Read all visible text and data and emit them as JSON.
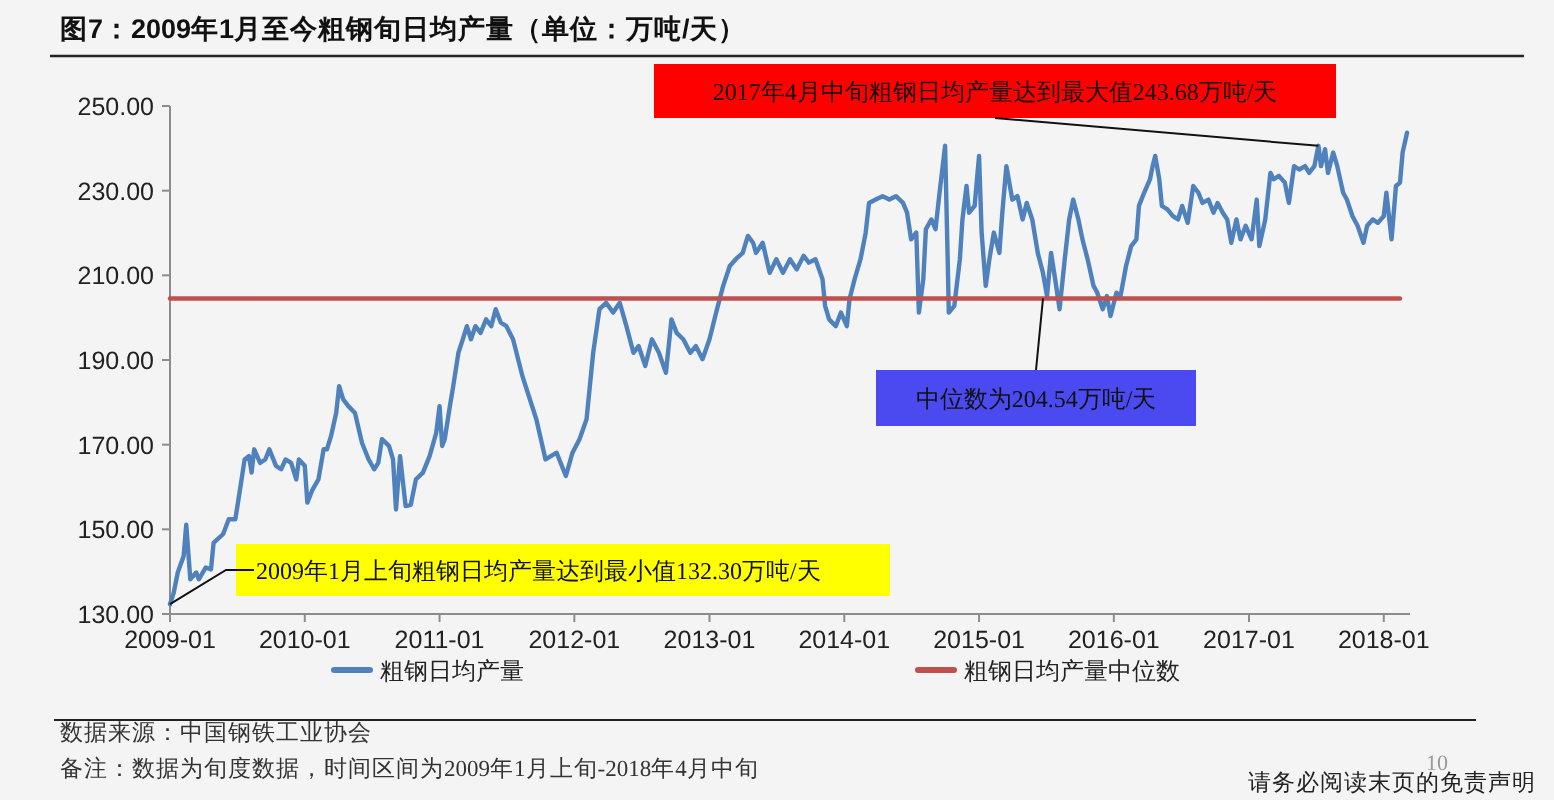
{
  "chart_data": {
    "type": "line",
    "title": "图7：2009年1月至今粗钢旬日均产量（单位：万吨/天）",
    "xlim": [
      "2009-01-01",
      "2018-03-13"
    ],
    "xticks": [
      "2009-01",
      "2010-01",
      "2011-01",
      "2012-01",
      "2013-01",
      "2014-01",
      "2015-01",
      "2016-01",
      "2017-01",
      "2018-01"
    ],
    "ylim": [
      130,
      250
    ],
    "yticks": [
      {
        "value": 130,
        "label": "130.00"
      },
      {
        "value": 150,
        "label": "150.00"
      },
      {
        "value": 170,
        "label": "170.00"
      },
      {
        "value": 190,
        "label": "190.00"
      },
      {
        "value": 210,
        "label": "210.00"
      },
      {
        "value": 230,
        "label": "230.00"
      },
      {
        "value": 250,
        "label": "250.00"
      }
    ],
    "legend": "bottom",
    "series": [
      {
        "name": "粗钢日均产量",
        "color": "#4f81bd",
        "x": [
          "2009-01-01",
          "2009-01-11",
          "2009-01-22",
          "2009-02-07",
          "2009-02-14",
          "2009-02-25",
          "2009-03-13",
          "2009-03-20",
          "2009-04-08",
          "2009-04-22",
          "2009-04-29",
          "2009-05-25",
          "2009-06-09",
          "2009-06-27",
          "2009-07-11",
          "2009-07-22",
          "2009-08-03",
          "2009-08-10",
          "2009-08-17",
          "2009-09-02",
          "2009-09-16",
          "2009-09-27",
          "2009-10-15",
          "2009-10-29",
          "2009-11-10",
          "2009-11-25",
          "2009-12-09",
          "2009-12-16",
          "2010-01-01",
          "2010-01-08",
          "2010-01-22",
          "2010-02-07",
          "2010-02-21",
          "2010-03-02",
          "2010-03-13",
          "2010-03-27",
          "2010-04-04",
          "2010-04-15",
          "2010-04-29",
          "2010-05-17",
          "2010-06-05",
          "2010-06-23",
          "2010-07-08",
          "2010-07-19",
          "2010-07-29",
          "2010-08-17",
          "2010-08-28",
          "2010-09-05",
          "2010-09-16",
          "2010-09-23",
          "2010-10-01",
          "2010-10-15",
          "2010-10-29",
          "2010-11-17",
          "2010-12-05",
          "2010-12-23",
          "2011-01-01",
          "2011-01-08",
          "2011-01-15",
          "2011-01-29",
          "2011-02-07",
          "2011-02-21",
          "2011-03-05",
          "2011-03-16",
          "2011-03-27",
          "2011-04-08",
          "2011-04-22",
          "2011-05-07",
          "2011-05-21",
          "2011-06-02",
          "2011-06-16",
          "2011-07-01",
          "2011-07-19",
          "2011-08-14",
          "2011-09-20",
          "2011-10-15",
          "2011-11-14",
          "2011-12-09",
          "2011-12-27",
          "2012-01-15",
          "2012-02-03",
          "2012-02-21",
          "2012-03-09",
          "2012-03-27",
          "2012-04-15",
          "2012-05-03",
          "2012-05-21",
          "2012-06-09",
          "2012-06-23",
          "2012-07-11",
          "2012-07-29",
          "2012-08-17",
          "2012-09-05",
          "2012-09-20",
          "2012-10-04",
          "2012-10-22",
          "2012-11-10",
          "2012-11-25",
          "2012-12-13",
          "2013-01-01",
          "2013-01-19",
          "2013-02-07",
          "2013-02-25",
          "2013-03-13",
          "2013-04-01",
          "2013-04-15",
          "2013-04-29",
          "2013-05-07",
          "2013-05-25",
          "2013-06-13",
          "2013-07-01",
          "2013-07-19",
          "2013-08-07",
          "2013-08-25",
          "2013-09-13",
          "2013-09-27",
          "2013-10-15",
          "2013-11-03",
          "2013-11-10",
          "2013-11-21",
          "2013-12-09",
          "2013-12-23",
          "2014-01-08",
          "2014-01-15",
          "2014-01-29",
          "2014-02-14",
          "2014-02-28",
          "2014-03-09",
          "2014-03-27",
          "2014-04-15",
          "2014-05-03",
          "2014-05-21",
          "2014-06-09",
          "2014-06-20",
          "2014-07-01",
          "2014-07-15",
          "2014-07-22",
          "2014-08-03",
          "2014-08-10",
          "2014-08-25",
          "2014-09-05",
          "2014-09-16",
          "2014-10-01",
          "2014-10-08",
          "2014-10-11",
          "2014-10-26",
          "2014-11-10",
          "2014-11-17",
          "2014-11-28",
          "2014-12-05",
          "2014-12-20",
          "2015-01-01",
          "2015-01-08",
          "2015-01-19",
          "2015-01-29",
          "2015-02-10",
          "2015-02-25",
          "2015-03-05",
          "2015-03-16",
          "2015-04-01",
          "2015-04-15",
          "2015-04-29",
          "2015-05-10",
          "2015-05-25",
          "2015-06-09",
          "2015-06-23",
          "2015-07-04",
          "2015-07-15",
          "2015-07-26",
          "2015-08-07",
          "2015-08-21",
          "2015-09-02",
          "2015-09-13",
          "2015-09-27",
          "2015-10-08",
          "2015-10-22",
          "2015-11-07",
          "2015-11-17",
          "2015-12-02",
          "2015-12-13",
          "2015-12-23",
          "2016-01-08",
          "2016-01-19",
          "2016-02-03",
          "2016-02-17",
          "2016-03-02",
          "2016-03-09",
          "2016-03-23",
          "2016-04-08",
          "2016-04-15",
          "2016-04-22",
          "2016-05-03",
          "2016-05-10",
          "2016-05-25",
          "2016-06-09",
          "2016-06-23",
          "2016-07-04",
          "2016-07-19",
          "2016-08-03",
          "2016-08-17",
          "2016-08-28",
          "2016-09-13",
          "2016-09-27",
          "2016-10-08",
          "2016-10-22",
          "2016-11-03",
          "2016-11-14",
          "2016-11-28",
          "2016-12-09",
          "2016-12-23",
          "2017-01-08",
          "2017-01-22",
          "2017-01-29",
          "2017-02-14",
          "2017-02-28",
          "2017-03-09",
          "2017-03-23",
          "2017-04-08",
          "2017-04-19",
          "2017-05-03",
          "2017-05-17",
          "2017-06-02",
          "2017-06-13",
          "2017-06-27",
          "2017-07-08",
          "2017-07-15",
          "2017-07-26",
          "2017-08-03",
          "2017-08-17",
          "2017-08-28",
          "2017-09-13",
          "2017-09-23",
          "2017-10-08",
          "2017-10-22",
          "2017-11-07",
          "2017-11-17",
          "2017-12-02",
          "2017-12-16",
          "2018-01-01",
          "2018-01-08",
          "2018-01-22",
          "2018-02-03",
          "2018-02-14",
          "2018-02-21",
          "2018-03-05"
        ],
        "values": [
          132.3,
          135.0,
          139.8,
          143.7,
          151.1,
          138.2,
          139.8,
          138.2,
          141.0,
          140.5,
          146.8,
          148.9,
          152.4,
          152.4,
          160.2,
          166.5,
          167.3,
          163.4,
          168.9,
          165.7,
          166.5,
          168.9,
          165.0,
          164.2,
          166.5,
          165.7,
          161.8,
          166.5,
          165.0,
          156.3,
          159.4,
          161.8,
          168.9,
          168.9,
          172.0,
          177.5,
          183.8,
          180.7,
          179.1,
          177.5,
          170.4,
          166.5,
          164.2,
          165.7,
          171.3,
          169.7,
          166.5,
          154.7,
          167.3,
          161.8,
          155.5,
          155.8,
          161.8,
          163.4,
          167.3,
          172.8,
          179.1,
          169.7,
          171.3,
          179.1,
          183.8,
          191.7,
          194.9,
          198.0,
          194.9,
          198.0,
          196.4,
          199.6,
          198.0,
          202.0,
          198.8,
          198.0,
          194.9,
          186.0,
          176.0,
          166.5,
          168.1,
          162.6,
          168.1,
          171.3,
          176.0,
          191.7,
          202.0,
          203.5,
          201.2,
          203.5,
          198.0,
          191.7,
          193.3,
          188.6,
          194.9,
          191.7,
          187.0,
          199.6,
          196.4,
          194.9,
          191.7,
          193.3,
          190.2,
          194.9,
          201.2,
          207.5,
          212.2,
          213.8,
          215.3,
          219.3,
          217.7,
          215.3,
          217.7,
          210.6,
          213.8,
          210.6,
          213.8,
          211.4,
          214.6,
          213.0,
          213.8,
          209.1,
          202.8,
          199.6,
          198.0,
          201.2,
          198.0,
          204.3,
          209.1,
          213.8,
          220.1,
          227.1,
          227.9,
          228.7,
          227.9,
          228.7,
          227.1,
          224.8,
          218.5,
          220.1,
          201.2,
          209.1,
          220.9,
          223.2,
          220.9,
          229.5,
          240.6,
          213.8,
          201.2,
          202.8,
          213.8,
          223.2,
          231.1,
          224.8,
          226.4,
          238.2,
          220.1,
          207.5,
          213.8,
          220.1,
          215.3,
          224.8,
          235.8,
          227.9,
          228.7,
          223.2,
          227.1,
          223.2,
          215.3,
          210.6,
          205.1,
          215.3,
          209.1,
          202.0,
          213.8,
          223.2,
          227.9,
          223.2,
          218.5,
          213.8,
          207.5,
          205.9,
          202.0,
          205.1,
          200.4,
          205.9,
          205.1,
          212.2,
          216.9,
          218.5,
          226.4,
          229.5,
          232.7,
          235.8,
          238.2,
          232.7,
          226.4,
          225.6,
          224.0,
          223.2,
          226.4,
          222.4,
          231.1,
          229.5,
          227.1,
          227.9,
          224.8,
          227.1,
          224.8,
          223.2,
          217.7,
          223.2,
          218.5,
          221.7,
          218.5,
          227.9,
          216.9,
          223.2,
          234.2,
          232.7,
          233.5,
          231.9,
          227.1,
          235.8,
          235.0,
          235.8,
          234.2,
          235.8,
          240.6,
          235.8,
          239.8,
          234.2,
          239.0,
          235.8,
          229.5,
          227.9,
          224.0,
          221.7,
          217.7,
          221.7,
          223.2,
          222.4,
          224.0,
          229.5,
          218.5,
          231.1,
          231.9,
          239.0,
          243.7
        ]
      },
      {
        "name": "粗钢日均产量中位数",
        "color": "#c0504d",
        "x": [
          "2009-01-01",
          "2018-02-14"
        ],
        "values": [
          204.54,
          204.54
        ]
      }
    ],
    "annotations": [
      {
        "text": "2017年4月中旬粗钢日均产量达到最大值243.68万吨/天",
        "x": "2017-07-08",
        "y": 240.6
      },
      {
        "text": "2009年1月上旬粗钢日均产量达到最小值132.30万吨/天",
        "x": "2009-01-01",
        "y": 132.3
      },
      {
        "text": "中位数为204.54万吨/天",
        "x": "2015-06-23",
        "y": 204.54
      },
      "数据来源：中国钢铁工业协会",
      "备注：数据为旬度数据，时间区间为2009年1月上旬-2018年4月中旬",
      "10",
      "请务必阅读末页的免责声明"
    ]
  }
}
